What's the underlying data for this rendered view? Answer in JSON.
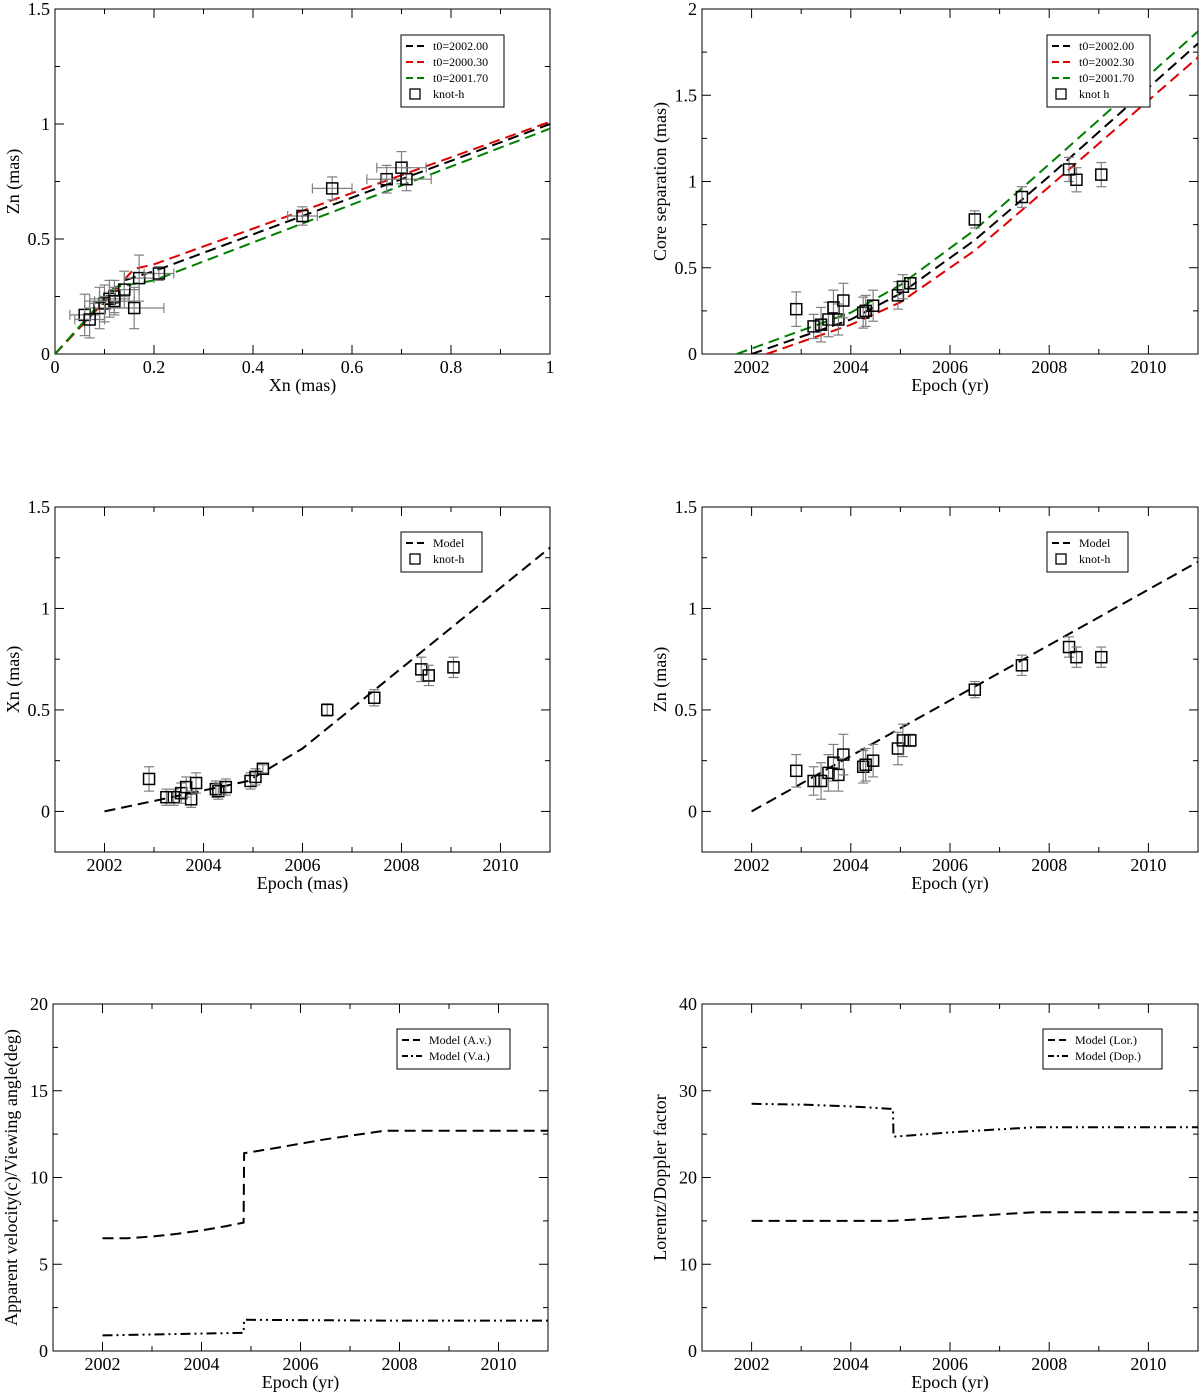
{
  "figure": {
    "panel_count": 6
  },
  "chart_data": [
    {
      "id": "p1",
      "type": "scatter",
      "xlabel": "Xn (mas)",
      "ylabel": "Zn (mas)",
      "xlim": [
        0,
        1
      ],
      "ylim": [
        0,
        1.5
      ],
      "xticks": [
        0,
        0.2,
        0.4,
        0.6,
        0.8,
        1
      ],
      "xtick_labels": [
        "0",
        "0.2",
        "0.4",
        "0.6",
        "0.8",
        "1"
      ],
      "yticks": [
        0,
        0.5,
        1,
        1.5
      ],
      "ytick_labels": [
        "0",
        "0.5",
        "1",
        "1.5"
      ],
      "legend_position": "top-right",
      "series": [
        {
          "name": "t0=2002.00",
          "kind": "line",
          "color": "#000000",
          "dash": "dash",
          "x": [
            0,
            0.14,
            0.2,
            1.0
          ],
          "y": [
            0,
            0.32,
            0.36,
            1.0
          ]
        },
        {
          "name": "t0=2000.30",
          "kind": "line",
          "color": "#e00000",
          "dash": "dash",
          "x": [
            0,
            0.16,
            0.2,
            1.0
          ],
          "y": [
            0,
            0.37,
            0.39,
            1.01
          ]
        },
        {
          "name": "t0=2001.70",
          "kind": "line",
          "color": "#008000",
          "dash": "dash",
          "x": [
            0,
            0.12,
            0.2,
            1.0
          ],
          "y": [
            0,
            0.29,
            0.32,
            0.98
          ]
        },
        {
          "name": "knot-h",
          "kind": "points",
          "marker": "square",
          "x": [
            0.06,
            0.07,
            0.09,
            0.1,
            0.11,
            0.12,
            0.12,
            0.14,
            0.16,
            0.17,
            0.21,
            0.5,
            0.56,
            0.67,
            0.7,
            0.71
          ],
          "y": [
            0.17,
            0.15,
            0.2,
            0.22,
            0.24,
            0.25,
            0.23,
            0.28,
            0.2,
            0.33,
            0.35,
            0.6,
            0.72,
            0.76,
            0.81,
            0.76
          ],
          "xerr": [
            0.03,
            0.03,
            0.03,
            0.03,
            0.04,
            0.03,
            0.04,
            0.03,
            0.06,
            0.03,
            0.03,
            0.03,
            0.04,
            0.04,
            0.05,
            0.05
          ],
          "yerr": [
            0.09,
            0.08,
            0.09,
            0.08,
            0.08,
            0.07,
            0.06,
            0.08,
            0.09,
            0.1,
            0.03,
            0.04,
            0.05,
            0.06,
            0.07,
            0.05
          ]
        }
      ]
    },
    {
      "id": "p2",
      "type": "scatter",
      "xlabel": "Epoch (yr)",
      "ylabel": "Core separation (mas)",
      "xlim": [
        2001,
        2011
      ],
      "ylim": [
        0,
        2
      ],
      "xticks": [
        2002,
        2004,
        2006,
        2008,
        2010
      ],
      "xtick_labels": [
        "2002",
        "2004",
        "2006",
        "2008",
        "2010"
      ],
      "yticks": [
        0,
        0.5,
        1,
        1.5,
        2
      ],
      "ytick_labels": [
        "0",
        "0.5",
        "1",
        "1.5",
        "2"
      ],
      "legend_position": "top-right",
      "series": [
        {
          "name": "t0=2002.00",
          "kind": "line",
          "color": "#000000",
          "dash": "dash",
          "x": [
            2002.0,
            2004.0,
            2005.0,
            2006.5,
            2008.0,
            2011.0
          ],
          "y": [
            0,
            0.2,
            0.35,
            0.66,
            1.03,
            1.8
          ]
        },
        {
          "name": "t0=2002.30",
          "kind": "line",
          "color": "#e00000",
          "dash": "dash",
          "x": [
            2002.3,
            2004.0,
            2005.0,
            2006.5,
            2008.0,
            2011.0
          ],
          "y": [
            0,
            0.17,
            0.3,
            0.6,
            0.97,
            1.72
          ]
        },
        {
          "name": "t0=2001.70",
          "kind": "line",
          "color": "#008000",
          "dash": "dash",
          "x": [
            2001.7,
            2004.0,
            2005.0,
            2006.5,
            2008.0,
            2011.0
          ],
          "y": [
            0,
            0.24,
            0.4,
            0.72,
            1.1,
            1.87
          ]
        },
        {
          "name": "knot h",
          "kind": "points",
          "marker": "square",
          "x": [
            2002.9,
            2003.25,
            2003.4,
            2003.55,
            2003.65,
            2003.75,
            2003.85,
            2004.25,
            2004.3,
            2004.45,
            2004.95,
            2005.05,
            2005.2,
            2006.5,
            2007.45,
            2008.4,
            2008.55,
            2009.05
          ],
          "y": [
            0.26,
            0.16,
            0.17,
            0.2,
            0.27,
            0.2,
            0.31,
            0.24,
            0.25,
            0.28,
            0.34,
            0.39,
            0.41,
            0.78,
            0.91,
            1.07,
            1.01,
            1.04
          ],
          "yerr": [
            0.1,
            0.07,
            0.1,
            0.1,
            0.1,
            0.09,
            0.1,
            0.09,
            0.09,
            0.09,
            0.08,
            0.07,
            0.03,
            0.05,
            0.06,
            0.07,
            0.07,
            0.07
          ]
        }
      ]
    },
    {
      "id": "p3",
      "type": "scatter",
      "xlabel": "Epoch (mas)",
      "ylabel": "Xn (mas)",
      "xlim": [
        2001,
        2011
      ],
      "ylim": [
        -0.2,
        1.5
      ],
      "xticks": [
        2002,
        2004,
        2006,
        2008,
        2010
      ],
      "xtick_labels": [
        "2002",
        "2004",
        "2006",
        "2008",
        "2010"
      ],
      "yticks": [
        0,
        0.5,
        1,
        1.5
      ],
      "ytick_labels": [
        "0",
        "0.5",
        "1",
        "1.5"
      ],
      "legend_position": "top-right",
      "series": [
        {
          "name": "Model",
          "kind": "line",
          "color": "#000000",
          "dash": "dash",
          "x": [
            2002.0,
            2004.9,
            2006.0,
            2011.0
          ],
          "y": [
            0,
            0.15,
            0.31,
            1.3
          ]
        },
        {
          "name": "knot-h",
          "kind": "points",
          "marker": "square",
          "x": [
            2002.9,
            2003.25,
            2003.4,
            2003.55,
            2003.65,
            2003.75,
            2003.85,
            2004.25,
            2004.3,
            2004.45,
            2004.95,
            2005.05,
            2005.2,
            2006.5,
            2007.45,
            2008.4,
            2008.55,
            2009.05
          ],
          "y": [
            0.16,
            0.07,
            0.07,
            0.09,
            0.12,
            0.06,
            0.14,
            0.11,
            0.1,
            0.12,
            0.15,
            0.17,
            0.21,
            0.5,
            0.56,
            0.7,
            0.67,
            0.71
          ],
          "yerr": [
            0.06,
            0.04,
            0.04,
            0.05,
            0.05,
            0.04,
            0.05,
            0.04,
            0.04,
            0.04,
            0.04,
            0.04,
            0.02,
            0.03,
            0.04,
            0.06,
            0.05,
            0.05
          ]
        }
      ]
    },
    {
      "id": "p4",
      "type": "scatter",
      "xlabel": "Epoch (yr)",
      "ylabel": "Zn (mas)",
      "xlim": [
        2001,
        2011
      ],
      "ylim": [
        -0.2,
        1.5
      ],
      "xticks": [
        2002,
        2004,
        2006,
        2008,
        2010
      ],
      "xtick_labels": [
        "2002",
        "2004",
        "2006",
        "2008",
        "2010"
      ],
      "yticks": [
        0,
        0.5,
        1,
        1.5
      ],
      "ytick_labels": [
        "0",
        "0.5",
        "1",
        "1.5"
      ],
      "legend_position": "top-right",
      "series": [
        {
          "name": "Model",
          "kind": "line",
          "color": "#000000",
          "dash": "dash",
          "x": [
            2002.0,
            2011.0
          ],
          "y": [
            0,
            1.23
          ]
        },
        {
          "name": "knot-h",
          "kind": "points",
          "marker": "square",
          "x": [
            2002.9,
            2003.25,
            2003.4,
            2003.55,
            2003.65,
            2003.75,
            2003.85,
            2004.25,
            2004.3,
            2004.45,
            2004.95,
            2005.05,
            2005.2,
            2006.5,
            2007.45,
            2008.4,
            2008.55,
            2009.05
          ],
          "y": [
            0.2,
            0.15,
            0.15,
            0.19,
            0.24,
            0.18,
            0.28,
            0.22,
            0.23,
            0.25,
            0.31,
            0.35,
            0.35,
            0.6,
            0.72,
            0.81,
            0.76,
            0.76
          ],
          "yerr": [
            0.08,
            0.07,
            0.09,
            0.09,
            0.09,
            0.08,
            0.1,
            0.08,
            0.08,
            0.08,
            0.08,
            0.08,
            0.03,
            0.04,
            0.05,
            0.05,
            0.05,
            0.05
          ]
        }
      ]
    },
    {
      "id": "p5",
      "type": "line",
      "xlabel": "Epoch (yr)",
      "ylabel": "Apparent velocity(c)/Viewing angle(deg)",
      "xlim": [
        2001,
        2011
      ],
      "ylim": [
        0,
        20
      ],
      "xticks": [
        2002,
        2004,
        2006,
        2008,
        2010
      ],
      "xtick_labels": [
        "2002",
        "2004",
        "2006",
        "2008",
        "2010"
      ],
      "yticks": [
        0,
        5,
        10,
        15,
        20
      ],
      "ytick_labels": [
        "0",
        "5",
        "10",
        "15",
        "20"
      ],
      "legend_position": "top-right",
      "series": [
        {
          "name": "Model (A.v.)",
          "kind": "line",
          "color": "#000000",
          "dash": "dash",
          "x": [
            2002.0,
            2002.5,
            2003.0,
            2003.5,
            2004.0,
            2004.5,
            2004.85,
            2004.86,
            2005.5,
            2006.5,
            2007.7,
            2011.0
          ],
          "y": [
            6.5,
            6.5,
            6.6,
            6.75,
            6.95,
            7.2,
            7.4,
            11.4,
            11.7,
            12.2,
            12.7,
            12.7
          ]
        },
        {
          "name": "Model (V.a.)",
          "kind": "line",
          "color": "#000000",
          "dash": "dashdot",
          "x": [
            2002.0,
            2004.85,
            2004.86,
            2007.7,
            2011.0
          ],
          "y": [
            0.9,
            1.05,
            1.8,
            1.75,
            1.75
          ]
        }
      ]
    },
    {
      "id": "p6",
      "type": "line",
      "xlabel": "Epoch (yr)",
      "ylabel": "Lorentz/Doppler factor",
      "xlim": [
        2001,
        2011
      ],
      "ylim": [
        0,
        40
      ],
      "xticks": [
        2002,
        2004,
        2006,
        2008,
        2010
      ],
      "xtick_labels": [
        "2002",
        "2004",
        "2006",
        "2008",
        "2010"
      ],
      "yticks": [
        0,
        10,
        20,
        30,
        40
      ],
      "ytick_labels": [
        "0",
        "10",
        "20",
        "30",
        "40"
      ],
      "legend_position": "top-right",
      "series": [
        {
          "name": "Model (Lor.)",
          "kind": "line",
          "color": "#000000",
          "dash": "dash",
          "x": [
            2002.0,
            2004.85,
            2006.0,
            2007.7,
            2011.0
          ],
          "y": [
            15.0,
            15.0,
            15.4,
            16.0,
            16.0
          ]
        },
        {
          "name": "Model (Dop.)",
          "kind": "line",
          "color": "#000000",
          "dash": "dashdot",
          "x": [
            2002.0,
            2003.0,
            2004.0,
            2004.85,
            2004.86,
            2006.0,
            2007.7,
            2011.0
          ],
          "y": [
            28.5,
            28.4,
            28.2,
            27.9,
            24.7,
            25.2,
            25.8,
            25.8
          ]
        }
      ]
    }
  ]
}
